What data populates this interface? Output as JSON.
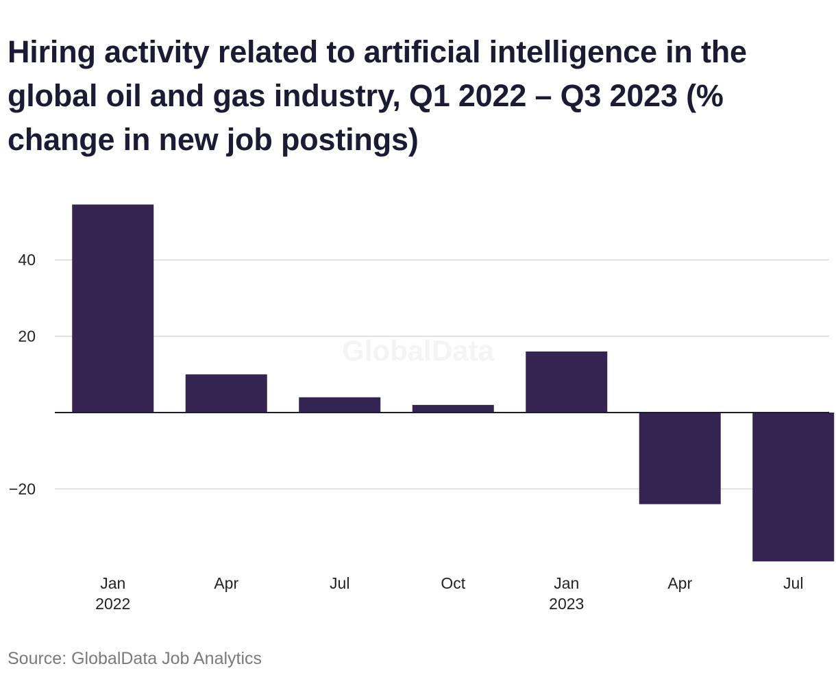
{
  "chart_data": {
    "type": "bar",
    "title": "Hiring activity related to artificial intelligence in the global oil and gas industry, Q1 2022 – Q3 2023 (% change in new job postings)",
    "categories": [
      {
        "month": "Jan",
        "year": "2022"
      },
      {
        "month": "Apr",
        "year": ""
      },
      {
        "month": "Jul",
        "year": ""
      },
      {
        "month": "Oct",
        "year": ""
      },
      {
        "month": "Jan",
        "year": "2023"
      },
      {
        "month": "Apr",
        "year": ""
      },
      {
        "month": "Jul",
        "year": ""
      }
    ],
    "values": [
      54.5,
      10,
      4,
      2,
      16,
      -24,
      -39
    ],
    "ylim": [
      -39,
      55
    ],
    "yticks": [
      40,
      20,
      0,
      -20
    ],
    "ytick_labels": [
      "40",
      "20",
      "",
      "−20"
    ],
    "grid": true,
    "watermark": "GlobalData",
    "colors": {
      "bar": "#352351",
      "grid": "#d9d9d9",
      "zero_line": "#1b1b33",
      "tick_text": "#222222",
      "watermark": "#f4f4f4"
    }
  },
  "source": "Source: GlobalData Job Analytics"
}
